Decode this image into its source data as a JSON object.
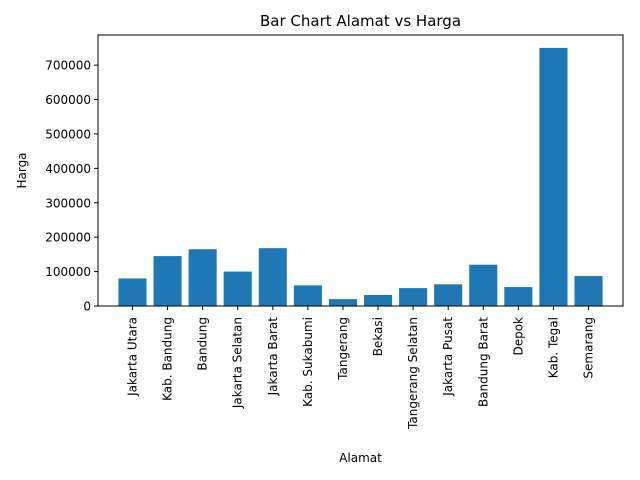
{
  "chart_data": {
    "type": "bar",
    "title": "Bar Chart Alamat vs Harga",
    "xlabel": "Alamat",
    "ylabel": "Harga",
    "categories": [
      "Jakarta Utara",
      "Kab. Bandung",
      "Bandung",
      "Jakarta Selatan",
      "Jakarta Barat",
      "Kab. Sukabumi",
      "Tangerang",
      "Bekasi",
      "Tangerang Selatan",
      "Jakarta Pusat",
      "Bandung Barat",
      "Depok",
      "Kab. Tegal",
      "Semarang"
    ],
    "values": [
      80000,
      145000,
      165000,
      100000,
      168000,
      60000,
      20000,
      32000,
      52000,
      63000,
      120000,
      55000,
      750000,
      87000
    ],
    "ylim": [
      0,
      787500
    ],
    "yticks": [
      0,
      100000,
      200000,
      300000,
      400000,
      500000,
      600000,
      700000
    ],
    "bar_color": "#1f77b4",
    "grid": false,
    "legend": "none"
  }
}
